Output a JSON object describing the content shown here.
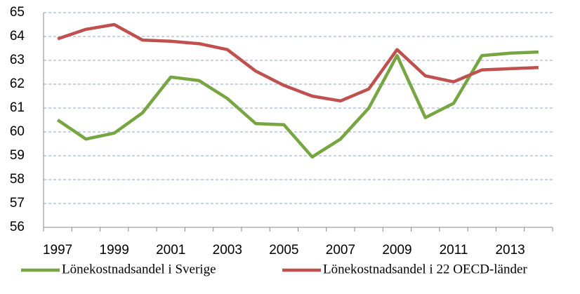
{
  "chart_data": {
    "type": "line",
    "categories": [
      "1997",
      null,
      "1999",
      null,
      "2001",
      null,
      "2003",
      null,
      "2005",
      null,
      "2007",
      null,
      "2009",
      null,
      "2011",
      null,
      "2013",
      null
    ],
    "series": [
      {
        "name": "Lönekostnadsandel i Sverige",
        "color": "#77a542",
        "values": [
          60.5,
          59.7,
          59.95,
          60.8,
          62.3,
          62.15,
          61.4,
          60.35,
          60.3,
          58.95,
          59.7,
          61.0,
          63.2,
          60.6,
          61.2,
          63.2,
          63.3,
          63.35
        ]
      },
      {
        "name": "Lönekostnadsandel i 22 OECD-länder",
        "color": "#c0504d",
        "values": [
          63.9,
          64.3,
          64.5,
          63.85,
          63.8,
          63.7,
          63.45,
          62.55,
          61.95,
          61.5,
          61.3,
          61.8,
          63.45,
          62.35,
          62.1,
          62.6,
          62.65,
          62.7
        ]
      }
    ],
    "ylim": [
      56,
      65
    ],
    "yticks": [
      56,
      57,
      58,
      59,
      60,
      61,
      62,
      63,
      64,
      65
    ],
    "grid": true
  }
}
